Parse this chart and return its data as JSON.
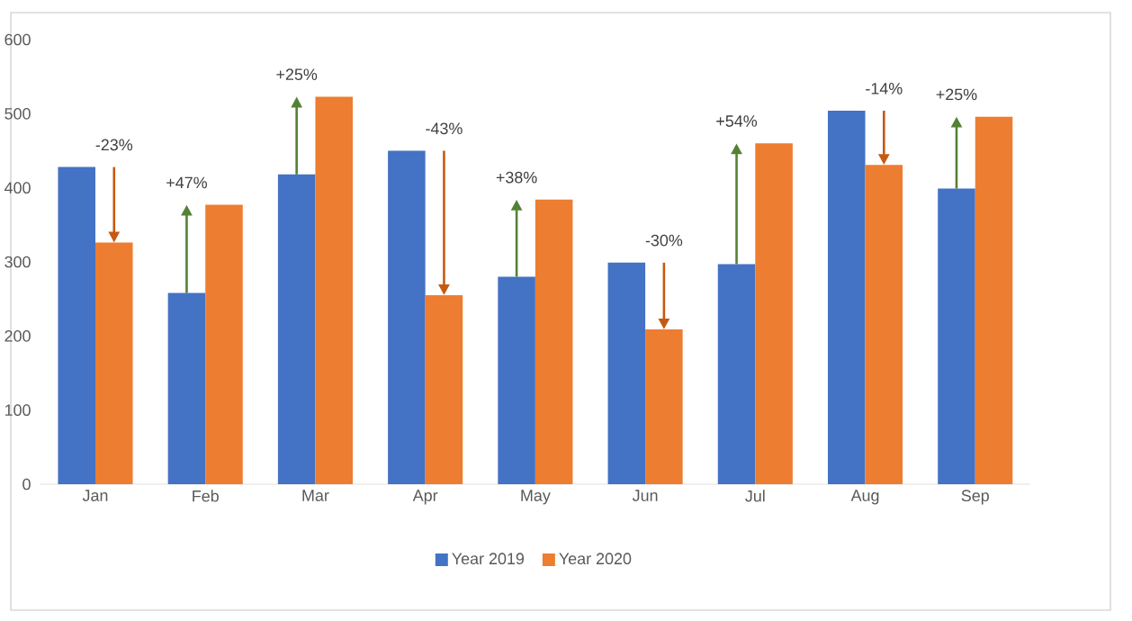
{
  "chart_data": {
    "type": "bar",
    "categories": [
      "Jan",
      "Feb",
      "Mar",
      "Apr",
      "May",
      "Jun",
      "Jul",
      "Aug",
      "Sep"
    ],
    "series": [
      {
        "name": "Year 2019",
        "color": "#4472c4",
        "values": [
          428,
          258,
          418,
          450,
          280,
          299,
          297,
          504,
          399
        ]
      },
      {
        "name": "Year 2020",
        "color": "#ed7d31",
        "values": [
          326,
          377,
          523,
          255,
          384,
          209,
          460,
          431,
          496
        ]
      }
    ],
    "ylim": [
      0,
      600
    ],
    "yticks": [
      0,
      100,
      200,
      300,
      400,
      500,
      600
    ],
    "legend": "bottom",
    "annotations": [
      {
        "text": "-23%",
        "x": "Jan",
        "y": 428
      },
      {
        "text": "+47%",
        "x": "Feb",
        "y": 377
      },
      {
        "text": "+25%",
        "x": "Mar",
        "y": 523
      },
      {
        "text": "-43%",
        "x": "Apr",
        "y": 450
      },
      {
        "text": "+38%",
        "x": "May",
        "y": 384
      },
      {
        "text": "-30%",
        "x": "Jun",
        "y": 299
      },
      {
        "text": "+54%",
        "x": "Jul",
        "y": 460
      },
      {
        "text": "-14%",
        "x": "Aug",
        "y": 504
      },
      {
        "text": "+25%",
        "x": "Sep",
        "y": 496
      }
    ]
  }
}
